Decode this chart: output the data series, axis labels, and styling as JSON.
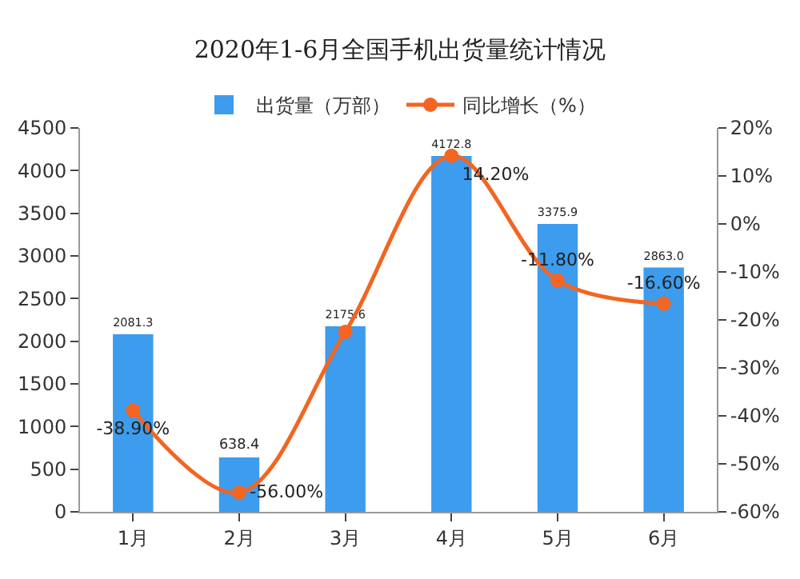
{
  "chart_data": {
    "type": "bar",
    "title": "2020年1-6月全国手机出货量统计情况",
    "categories": [
      "1月",
      "2月",
      "3月",
      "4月",
      "5月",
      "6月"
    ],
    "series": [
      {
        "name": "出货量（万部）",
        "color": "#3d9ced",
        "values": [
          2081.3,
          638.4,
          2175.6,
          4172.8,
          3375.9,
          2863.0
        ],
        "value_labels": [
          "2081.3",
          "638.4",
          "2175.6",
          "4172.8",
          "3375.9",
          "2863.0"
        ]
      },
      {
        "name": "同比增长（%）",
        "type": "line",
        "axis": "y2",
        "color": "#f26522",
        "marker": "circle",
        "values": [
          -38.9,
          -56.0,
          -22.5,
          14.2,
          -11.8,
          -16.6
        ],
        "value_labels": [
          "-38.90%",
          "-56.00%",
          null,
          "14.20%",
          "-11.80%",
          "-16.60%"
        ]
      }
    ],
    "ylim": [
      0,
      4500
    ],
    "yticks": [
      0,
      500,
      1000,
      1500,
      2000,
      2500,
      3000,
      3500,
      4000,
      4500
    ],
    "y2lim": [
      -60,
      20
    ],
    "y2ticks": [
      {
        "value": -60,
        "label": "-60%"
      },
      {
        "value": -50,
        "label": "-50%"
      },
      {
        "value": -40,
        "label": "-40%"
      },
      {
        "value": -30,
        "label": "-30%"
      },
      {
        "value": -20,
        "label": "-20%"
      },
      {
        "value": -10,
        "label": "-10%"
      },
      {
        "value": 0,
        "label": "0%"
      },
      {
        "value": 10,
        "label": "10%"
      },
      {
        "value": 20,
        "label": "20%"
      }
    ],
    "grid": false,
    "legend": "top"
  }
}
